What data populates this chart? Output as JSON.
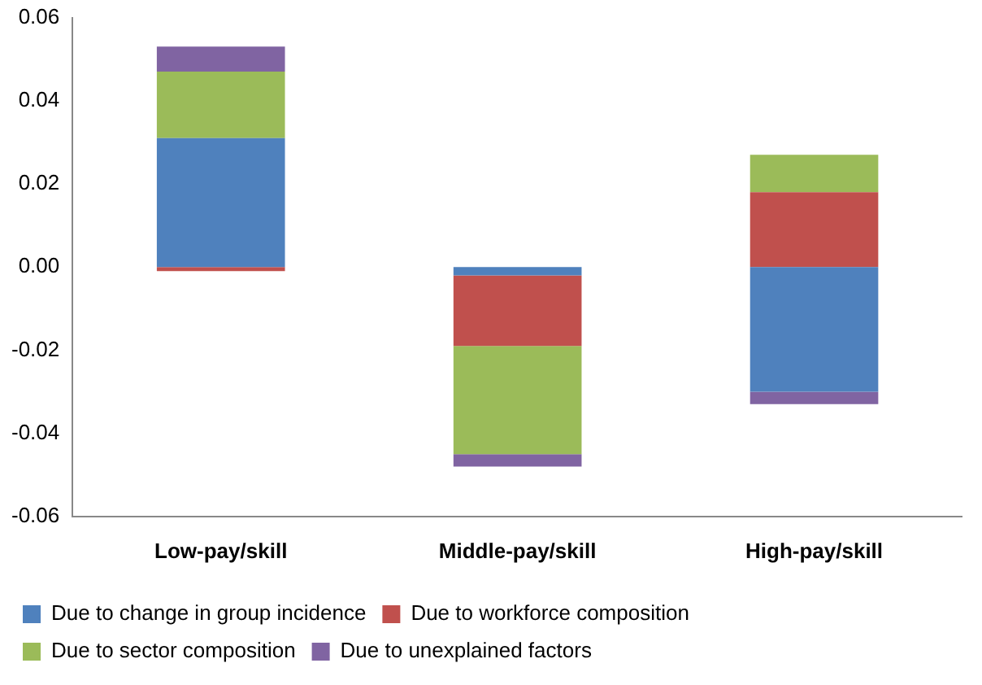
{
  "chart_data": {
    "type": "bar",
    "stacked": true,
    "categories": [
      "Low-pay/skill",
      "Middle-pay/skill",
      "High-pay/skill"
    ],
    "series": [
      {
        "name": "Due to change in group incidence",
        "color": "#4f81bd",
        "values": [
          0.031,
          -0.002,
          -0.03
        ]
      },
      {
        "name": "Due to workforce composition",
        "color": "#c0504d",
        "values": [
          -0.001,
          -0.017,
          0.018
        ]
      },
      {
        "name": "Due to sector composition",
        "color": "#9bbb59",
        "values": [
          0.016,
          -0.026,
          0.009
        ]
      },
      {
        "name": "Due to unexplained factors",
        "color": "#8064a2",
        "values": [
          0.006,
          -0.003,
          -0.003
        ]
      }
    ],
    "ylim": [
      -0.06,
      0.06
    ],
    "yticks": [
      -0.06,
      -0.04,
      -0.02,
      {
        "value": 0,
        "label": "0.00"
      },
      0.02,
      0.04,
      0.06
    ],
    "grid": false,
    "legend": "bottom"
  }
}
